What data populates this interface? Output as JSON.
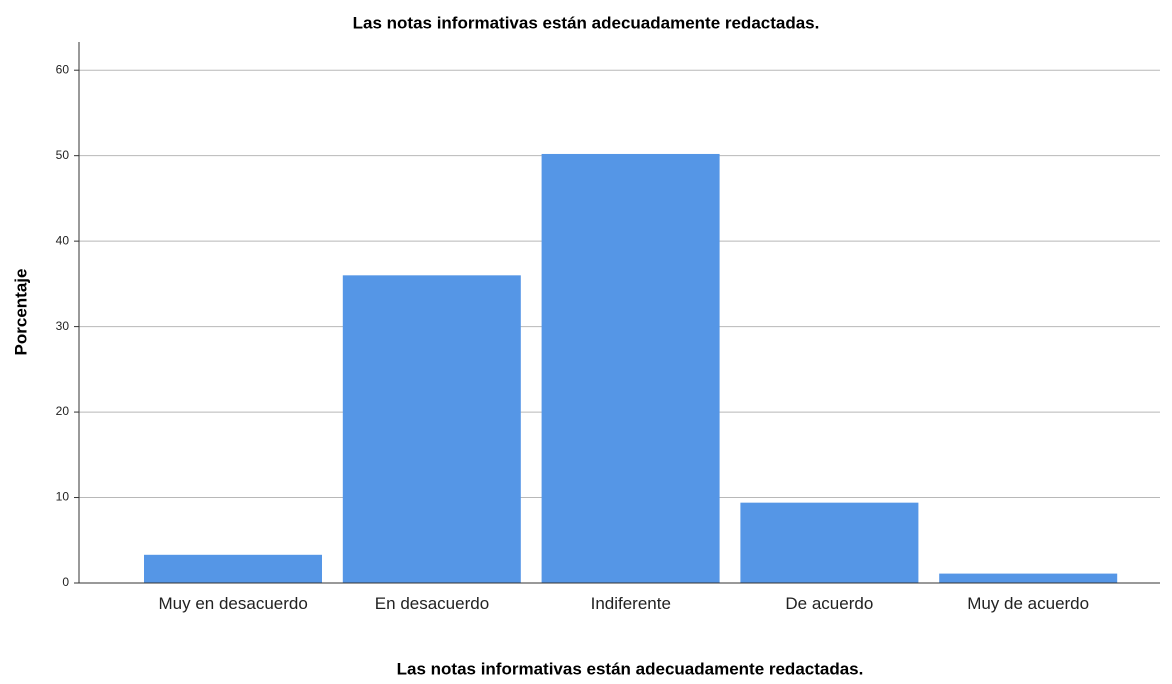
{
  "chart_data": {
    "type": "bar",
    "title": "Las notas informativas están adecuadamente redactadas.",
    "x_label": "Las notas informativas están adecuadamente redactadas.",
    "y_label": "Porcentaje",
    "categories": [
      "Muy en desacuerdo",
      "En desacuerdo",
      "Indiferente",
      "De acuerdo",
      "Muy de acuerdo"
    ],
    "values": [
      3.3,
      36.0,
      50.2,
      9.4,
      1.1
    ],
    "color": "#5596e6",
    "ylim": [
      0,
      63.3
    ],
    "yticks": [
      0,
      10,
      20,
      30,
      40,
      50,
      60
    ],
    "grid": true
  }
}
